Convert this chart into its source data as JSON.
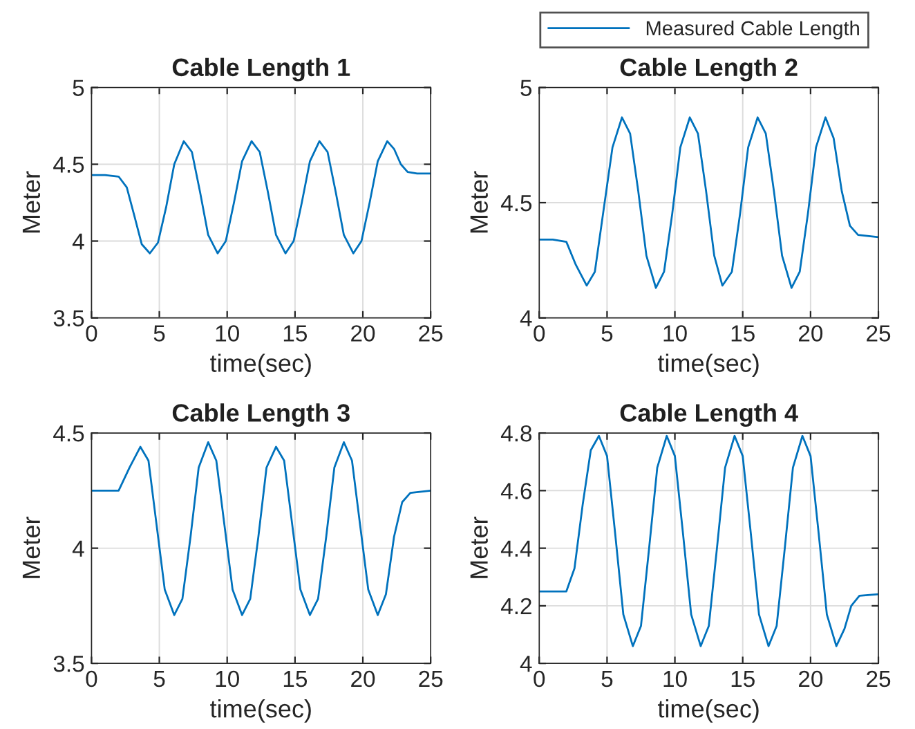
{
  "chart_data": [
    {
      "type": "line",
      "title": "Cable Length 1",
      "xlabel": "time(sec)",
      "ylabel": "Meter",
      "xlim": [
        0,
        25
      ],
      "xticks": [
        0,
        5,
        10,
        15,
        20,
        25
      ],
      "ylim": [
        3.5,
        5
      ],
      "yticks": [
        3.5,
        4,
        4.5,
        5
      ],
      "grid": true,
      "series": [
        {
          "color": "#0072bd",
          "x": [
            0,
            1,
            2,
            2.6,
            3.2,
            3.7,
            4.3,
            4.9,
            5.5,
            6.1,
            6.8,
            7.4,
            8.0,
            8.6,
            9.3,
            9.9,
            10.5,
            11.1,
            11.8,
            12.4,
            13.0,
            13.6,
            14.3,
            14.9,
            15.5,
            16.1,
            16.8,
            17.4,
            18.0,
            18.6,
            19.3,
            19.9,
            20.5,
            21.1,
            21.8,
            22.3,
            22.8,
            23.3,
            24,
            25
          ],
          "values": [
            4.43,
            4.43,
            4.42,
            4.35,
            4.15,
            3.98,
            3.92,
            3.99,
            4.22,
            4.5,
            4.65,
            4.58,
            4.32,
            4.04,
            3.92,
            4.0,
            4.25,
            4.52,
            4.65,
            4.58,
            4.32,
            4.04,
            3.92,
            4.0,
            4.25,
            4.52,
            4.65,
            4.58,
            4.32,
            4.04,
            3.92,
            4.0,
            4.25,
            4.52,
            4.65,
            4.6,
            4.5,
            4.45,
            4.44,
            4.44
          ]
        }
      ]
    },
    {
      "type": "line",
      "title": "Cable Length 2",
      "xlabel": "time(sec)",
      "ylabel": "Meter",
      "xlim": [
        0,
        25
      ],
      "xticks": [
        0,
        5,
        10,
        15,
        20,
        25
      ],
      "ylim": [
        4,
        5
      ],
      "yticks": [
        4,
        4.5,
        5
      ],
      "grid": true,
      "legend": "top right",
      "series": [
        {
          "name": "Measured Cable Length",
          "color": "#0072bd",
          "x": [
            0,
            1,
            2,
            2.7,
            3.5,
            4.1,
            4.7,
            5.4,
            6.1,
            6.7,
            7.3,
            7.9,
            8.6,
            9.2,
            9.8,
            10.4,
            11.1,
            11.7,
            12.3,
            12.9,
            13.5,
            14.2,
            14.8,
            15.4,
            16.1,
            16.7,
            17.3,
            17.9,
            18.6,
            19.2,
            19.8,
            20.4,
            21.1,
            21.7,
            22.3,
            22.9,
            23.5,
            25
          ],
          "values": [
            4.34,
            4.34,
            4.33,
            4.23,
            4.14,
            4.2,
            4.45,
            4.74,
            4.87,
            4.8,
            4.55,
            4.27,
            4.13,
            4.2,
            4.45,
            4.74,
            4.87,
            4.8,
            4.55,
            4.27,
            4.14,
            4.2,
            4.45,
            4.74,
            4.87,
            4.8,
            4.55,
            4.27,
            4.13,
            4.2,
            4.45,
            4.74,
            4.87,
            4.78,
            4.55,
            4.4,
            4.36,
            4.35
          ]
        }
      ]
    },
    {
      "type": "line",
      "title": "Cable Length 3",
      "xlabel": "time(sec)",
      "ylabel": "Meter",
      "xlim": [
        0,
        25
      ],
      "xticks": [
        0,
        5,
        10,
        15,
        20,
        25
      ],
      "ylim": [
        3.5,
        4.5
      ],
      "yticks": [
        3.5,
        4,
        4.5
      ],
      "grid": true,
      "series": [
        {
          "color": "#0072bd",
          "x": [
            0,
            1,
            2,
            2.8,
            3.6,
            4.2,
            4.8,
            5.4,
            6.1,
            6.7,
            7.3,
            7.9,
            8.6,
            9.2,
            9.8,
            10.4,
            11.1,
            11.7,
            12.3,
            12.9,
            13.6,
            14.2,
            14.8,
            15.4,
            16.1,
            16.7,
            17.3,
            17.9,
            18.6,
            19.2,
            19.8,
            20.4,
            21.1,
            21.7,
            22.3,
            22.9,
            23.5,
            25
          ],
          "values": [
            4.25,
            4.25,
            4.25,
            4.35,
            4.44,
            4.38,
            4.1,
            3.82,
            3.71,
            3.78,
            4.05,
            4.35,
            4.46,
            4.38,
            4.1,
            3.82,
            3.71,
            3.78,
            4.05,
            4.35,
            4.44,
            4.38,
            4.1,
            3.82,
            3.71,
            3.78,
            4.05,
            4.35,
            4.46,
            4.38,
            4.1,
            3.82,
            3.71,
            3.8,
            4.05,
            4.2,
            4.24,
            4.25
          ]
        }
      ]
    },
    {
      "type": "line",
      "title": "Cable Length 4",
      "xlabel": "time(sec)",
      "ylabel": "Meter",
      "xlim": [
        0,
        25
      ],
      "xticks": [
        0,
        5,
        10,
        15,
        20,
        25
      ],
      "ylim": [
        4,
        4.8
      ],
      "yticks": [
        4,
        4.2,
        4.4,
        4.6,
        4.8
      ],
      "grid": true,
      "series": [
        {
          "color": "#0072bd",
          "x": [
            0,
            1,
            2,
            2.6,
            3.2,
            3.8,
            4.4,
            5.0,
            5.6,
            6.2,
            6.9,
            7.5,
            8.1,
            8.7,
            9.4,
            10.0,
            10.6,
            11.2,
            11.9,
            12.5,
            13.1,
            13.7,
            14.4,
            15.0,
            15.6,
            16.2,
            16.9,
            17.5,
            18.1,
            18.7,
            19.4,
            20.0,
            20.6,
            21.2,
            21.9,
            22.5,
            23.0,
            23.6,
            25
          ],
          "values": [
            4.25,
            4.25,
            4.25,
            4.33,
            4.55,
            4.74,
            4.79,
            4.72,
            4.45,
            4.17,
            4.06,
            4.13,
            4.4,
            4.68,
            4.79,
            4.72,
            4.45,
            4.17,
            4.06,
            4.13,
            4.4,
            4.68,
            4.79,
            4.72,
            4.45,
            4.17,
            4.06,
            4.13,
            4.4,
            4.68,
            4.79,
            4.72,
            4.45,
            4.17,
            4.06,
            4.12,
            4.2,
            4.235,
            4.24
          ]
        }
      ]
    }
  ]
}
